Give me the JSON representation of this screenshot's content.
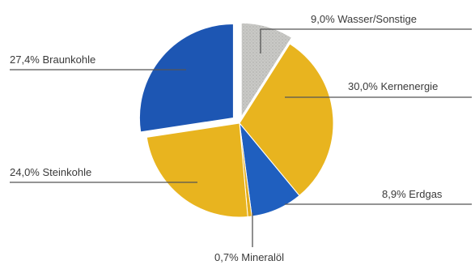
{
  "chart_data": {
    "type": "pie",
    "slices": [
      {
        "name": "Wasser/Sonstige",
        "value": 9.0,
        "label": "9,0% Wasser/Sonstige",
        "color": "#c9c9c6"
      },
      {
        "name": "Kernenergie",
        "value": 30.0,
        "label": "30,0% Kernenergie",
        "color": "#e8b41f"
      },
      {
        "name": "Erdgas",
        "value": 8.9,
        "label": "8,9% Erdgas",
        "color": "#1f5fbf"
      },
      {
        "name": "Mineralöl",
        "value": 0.7,
        "label": "0,7% Mineralöl",
        "color": "#e3ad1c"
      },
      {
        "name": "Steinkohle",
        "value": 24.0,
        "label": "24,0% Steinkohle",
        "color": "#e8b41f"
      },
      {
        "name": "Braunkohle",
        "value": 27.4,
        "label": "27,4% Braunkohle",
        "color": "#1d56b3"
      }
    ],
    "exploded": [
      "Wasser/Sonstige",
      "Braunkohle"
    ],
    "legend": "none"
  }
}
